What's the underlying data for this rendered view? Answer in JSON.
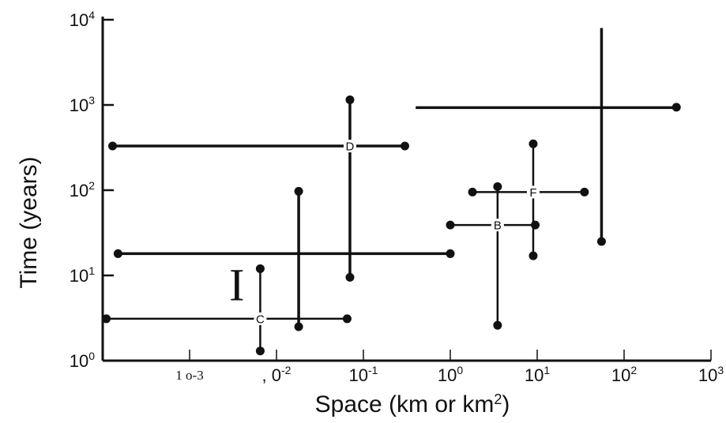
{
  "chart_data": {
    "type": "scatter",
    "title": "",
    "xlabel": "Space (km or km",
    "xlabel_sup": "2",
    "xlabel_end": ")",
    "ylabel": "Time (years)",
    "x_scale": "log",
    "y_scale": "log",
    "xlim": [
      0.0001,
      1000
    ],
    "ylim": [
      1,
      10000
    ],
    "grid": false,
    "x_ticks": [
      {
        "value": 0.001,
        "label": "1 o-3",
        "style": "serif"
      },
      {
        "value": 0.01,
        "label": ", 0",
        "sup": "-2",
        "style": "mixed"
      },
      {
        "value": 0.1,
        "label": "10",
        "sup": "-1"
      },
      {
        "value": 1,
        "label": "10",
        "sup": "0"
      },
      {
        "value": 10,
        "label": "10",
        "sup": "1"
      },
      {
        "value": 100,
        "label": "10",
        "sup": "2"
      },
      {
        "value": 1000,
        "label": "10",
        "sup": "3"
      }
    ],
    "y_ticks": [
      {
        "value": 1,
        "label": "10",
        "sup": "0"
      },
      {
        "value": 10,
        "label": "10",
        "sup": "1"
      },
      {
        "value": 100,
        "label": "10",
        "sup": "2"
      },
      {
        "value": 1000,
        "label": "10",
        "sup": "3"
      },
      {
        "value": 10000,
        "label": "10",
        "sup": "4"
      }
    ],
    "series": [
      {
        "label": "D",
        "h": [
          0.00013,
          0.3
        ],
        "v": [
          9.5,
          1150
        ],
        "center": [
          0.07,
          330
        ],
        "dots": [
          [
            0.00013,
            330
          ],
          [
            0.3,
            330
          ],
          [
            0.07,
            1150
          ],
          [
            0.07,
            9.5
          ]
        ]
      },
      {
        "label": "",
        "h": [
          0.4,
          400
        ],
        "v": [
          25,
          8000
        ],
        "center": [
          55,
          930
        ],
        "dots": [
          [
            400,
            940
          ],
          [
            55,
            25
          ]
        ]
      },
      {
        "label": "",
        "h": [
          0.00015,
          1.0
        ],
        "v": [
          2.5,
          100
        ],
        "center": [
          0.018,
          18
        ],
        "dots": [
          [
            0.00015,
            18
          ],
          [
            1.0,
            18
          ],
          [
            0.018,
            97
          ],
          [
            0.018,
            2.5
          ]
        ]
      },
      {
        "label": "C",
        "h": [
          0.00011,
          0.065
        ],
        "v": [
          1.3,
          12
        ],
        "center": [
          0.0065,
          3.1
        ],
        "dots": [
          [
            0.00011,
            3.1
          ],
          [
            0.065,
            3.1
          ],
          [
            0.0065,
            12
          ],
          [
            0.0065,
            1.3
          ]
        ]
      },
      {
        "label": "B",
        "h": [
          1.0,
          9.5
        ],
        "v": [
          2.6,
          110
        ],
        "center": [
          3.5,
          39
        ],
        "dots": [
          [
            1.0,
            39
          ],
          [
            9.5,
            39
          ],
          [
            3.5,
            110
          ],
          [
            3.5,
            2.6
          ]
        ]
      },
      {
        "label": "F",
        "h": [
          1.8,
          35
        ],
        "v": [
          17,
          350
        ],
        "center": [
          9,
          95
        ],
        "dots": [
          [
            1.8,
            95
          ],
          [
            35,
            95
          ],
          [
            9,
            350
          ],
          [
            9,
            17
          ]
        ]
      }
    ],
    "annotations": [
      {
        "text": "I",
        "x": 0.0035,
        "y": 7.5
      }
    ]
  }
}
